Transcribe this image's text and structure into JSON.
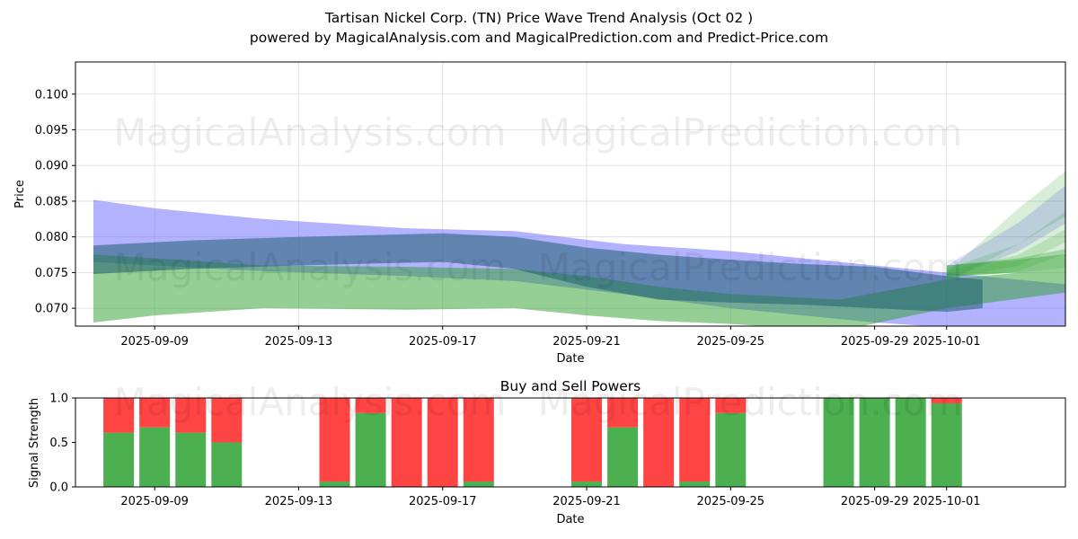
{
  "page": {
    "title": "Tartisan Nickel Corp. (TN) Price Wave Trend Analysis (Oct 02 )",
    "subtitle": "powered by MagicalAnalysis.com and MagicalPrediction.com and Predict-Price.com",
    "watermarks": [
      "MagicalAnalysis.com",
      "MagicalPrediction.com"
    ]
  },
  "colors": {
    "blue_band": "#6666ff",
    "green_band": "#2ca02c",
    "dark_band": "#1f5f6f",
    "buy": "#4caf50",
    "sell": "#ff4444"
  },
  "chart_data": [
    {
      "type": "area",
      "title": "",
      "xlabel": "Date",
      "ylabel": "Price",
      "xlim": [
        "2025-09-06.8",
        "2025-10-04.3"
      ],
      "ylim": [
        0.0675,
        0.1045
      ],
      "x_ticks": [
        "2025-09-09",
        "2025-09-13",
        "2025-09-17",
        "2025-09-21",
        "2025-09-25",
        "2025-09-29",
        "2025-10-01"
      ],
      "y_ticks": [
        0.07,
        0.075,
        0.08,
        0.085,
        0.09,
        0.095,
        0.1
      ],
      "y_tick_labels": [
        "0.070",
        "0.075",
        "0.080",
        "0.085",
        "0.090",
        "0.095",
        "0.100"
      ],
      "grid": true,
      "series": [
        {
          "name": "Blue wide band",
          "color": "blue",
          "opacity": 0.5,
          "x_days": [
            0.3,
            2,
            5,
            9,
            12,
            15,
            18,
            20,
            22,
            25,
            28,
            30,
            32,
            33
          ],
          "upper": [
            0.0852,
            0.084,
            0.0825,
            0.0812,
            0.0808,
            0.079,
            0.078,
            0.077,
            0.076,
            0.0745,
            0.073,
            0.0735,
            0.0755,
            0.078
          ],
          "lower": [
            0.0765,
            0.076,
            0.0752,
            0.0745,
            0.0738,
            0.072,
            0.07,
            0.069,
            0.068,
            0.067,
            0.067,
            0.068,
            0.0695,
            0.0695
          ]
        },
        {
          "name": "Green lower band",
          "color": "green",
          "opacity": 0.5,
          "x_days": [
            0.3,
            2,
            5,
            9,
            12,
            14,
            16,
            18,
            21,
            24,
            27,
            30,
            32,
            34
          ],
          "upper": [
            0.0775,
            0.077,
            0.076,
            0.0758,
            0.0755,
            0.0745,
            0.073,
            0.072,
            0.0712,
            0.074,
            0.0755,
            0.077,
            0.0795,
            0.0825
          ],
          "lower": [
            0.068,
            0.069,
            0.07,
            0.0698,
            0.07,
            0.069,
            0.0682,
            0.0678,
            0.0668,
            0.07,
            0.072,
            0.074,
            0.0755,
            0.077
          ]
        },
        {
          "name": "Dark mid band",
          "color": "dark",
          "opacity": 0.55,
          "x_days": [
            0.3,
            3,
            6,
            10,
            12,
            14,
            16,
            18,
            20,
            22,
            24,
            25
          ],
          "upper": [
            0.0788,
            0.0795,
            0.08,
            0.0805,
            0.08,
            0.0785,
            0.0775,
            0.0768,
            0.0762,
            0.0758,
            0.0745,
            0.074
          ],
          "lower": [
            0.0748,
            0.0755,
            0.076,
            0.0765,
            0.0755,
            0.073,
            0.0712,
            0.0708,
            0.0705,
            0.07,
            0.0695,
            0.07
          ]
        },
        {
          "name": "Blue upper forecast band",
          "color": "blue",
          "opacity": 0.25,
          "x_days": [
            24,
            26,
            28,
            30,
            31.5,
            33
          ],
          "upper": [
            0.076,
            0.082,
            0.09,
            0.098,
            0.103,
            0.1025
          ],
          "lower": [
            0.074,
            0.078,
            0.084,
            0.092,
            0.099,
            0.0995
          ]
        },
        {
          "name": "Green forecast band 1",
          "color": "green",
          "opacity": 0.18,
          "x_days": [
            24,
            26,
            28,
            30,
            32,
            33
          ],
          "upper": [
            0.075,
            0.084,
            0.092,
            0.0965,
            0.102,
            0.103
          ],
          "lower": [
            0.0735,
            0.079,
            0.085,
            0.09,
            0.098,
            0.099
          ]
        },
        {
          "name": "Green forecast band 2",
          "color": "green",
          "opacity": 0.18,
          "x_days": [
            24,
            26,
            28,
            30,
            32,
            33
          ],
          "upper": [
            0.0755,
            0.079,
            0.086,
            0.0915,
            0.0945,
            0.096
          ],
          "lower": [
            0.074,
            0.076,
            0.081,
            0.086,
            0.09,
            0.0915
          ]
        },
        {
          "name": "Green forecast band 3",
          "color": "green",
          "opacity": 0.18,
          "x_days": [
            24,
            26,
            28,
            30,
            32,
            33
          ],
          "upper": [
            0.0752,
            0.0775,
            0.083,
            0.088,
            0.091,
            0.0925
          ],
          "lower": [
            0.0738,
            0.0752,
            0.079,
            0.0835,
            0.087,
            0.0885
          ]
        },
        {
          "name": "Green forecast band 4",
          "color": "green",
          "opacity": 0.3,
          "x_days": [
            24,
            26,
            28,
            30,
            32,
            33.2
          ],
          "upper": [
            0.076,
            0.077,
            0.079,
            0.084,
            0.089,
            0.086
          ],
          "lower": [
            0.0745,
            0.075,
            0.076,
            0.079,
            0.084,
            0.0815
          ]
        },
        {
          "name": "Green forecast band 5",
          "color": "green",
          "opacity": 0.4,
          "x_days": [
            24,
            26,
            28,
            30,
            31.5,
            33.2
          ],
          "upper": [
            0.076,
            0.0768,
            0.078,
            0.0815,
            0.085,
            0.0895
          ],
          "lower": [
            0.0745,
            0.075,
            0.076,
            0.078,
            0.081,
            0.0835
          ]
        }
      ]
    },
    {
      "type": "bar",
      "title": "Buy and Sell Powers",
      "xlabel": "Date",
      "ylabel": "Signal Strength",
      "ylim": [
        0,
        1.0
      ],
      "y_ticks": [
        0.0,
        0.5,
        1.0
      ],
      "y_tick_labels": [
        "0.0",
        "0.5",
        "1.0"
      ],
      "x_ticks": [
        "2025-09-09",
        "2025-09-13",
        "2025-09-17",
        "2025-09-21",
        "2025-09-25",
        "2025-09-29",
        "2025-10-01"
      ],
      "categories": [
        "2025-09-08",
        "2025-09-09",
        "2025-09-10",
        "2025-09-11",
        "2025-09-14",
        "2025-09-15",
        "2025-09-16",
        "2025-09-17",
        "2025-09-18",
        "2025-09-21",
        "2025-09-22",
        "2025-09-23",
        "2025-09-24",
        "2025-09-25",
        "2025-09-28",
        "2025-09-29",
        "2025-09-30",
        "2025-10-01"
      ],
      "series": [
        {
          "name": "Buy",
          "values": [
            0.61,
            0.67,
            0.61,
            0.5,
            0.06,
            0.83,
            0.0,
            0.0,
            0.06,
            0.06,
            0.67,
            0.0,
            0.06,
            0.83,
            1.0,
            1.0,
            1.0,
            0.94
          ]
        },
        {
          "name": "Sell",
          "values": [
            0.39,
            0.33,
            0.39,
            0.5,
            0.94,
            0.17,
            1.0,
            1.0,
            0.94,
            0.94,
            0.33,
            1.0,
            0.94,
            0.17,
            0.0,
            0.0,
            0.0,
            0.06
          ]
        }
      ]
    }
  ]
}
